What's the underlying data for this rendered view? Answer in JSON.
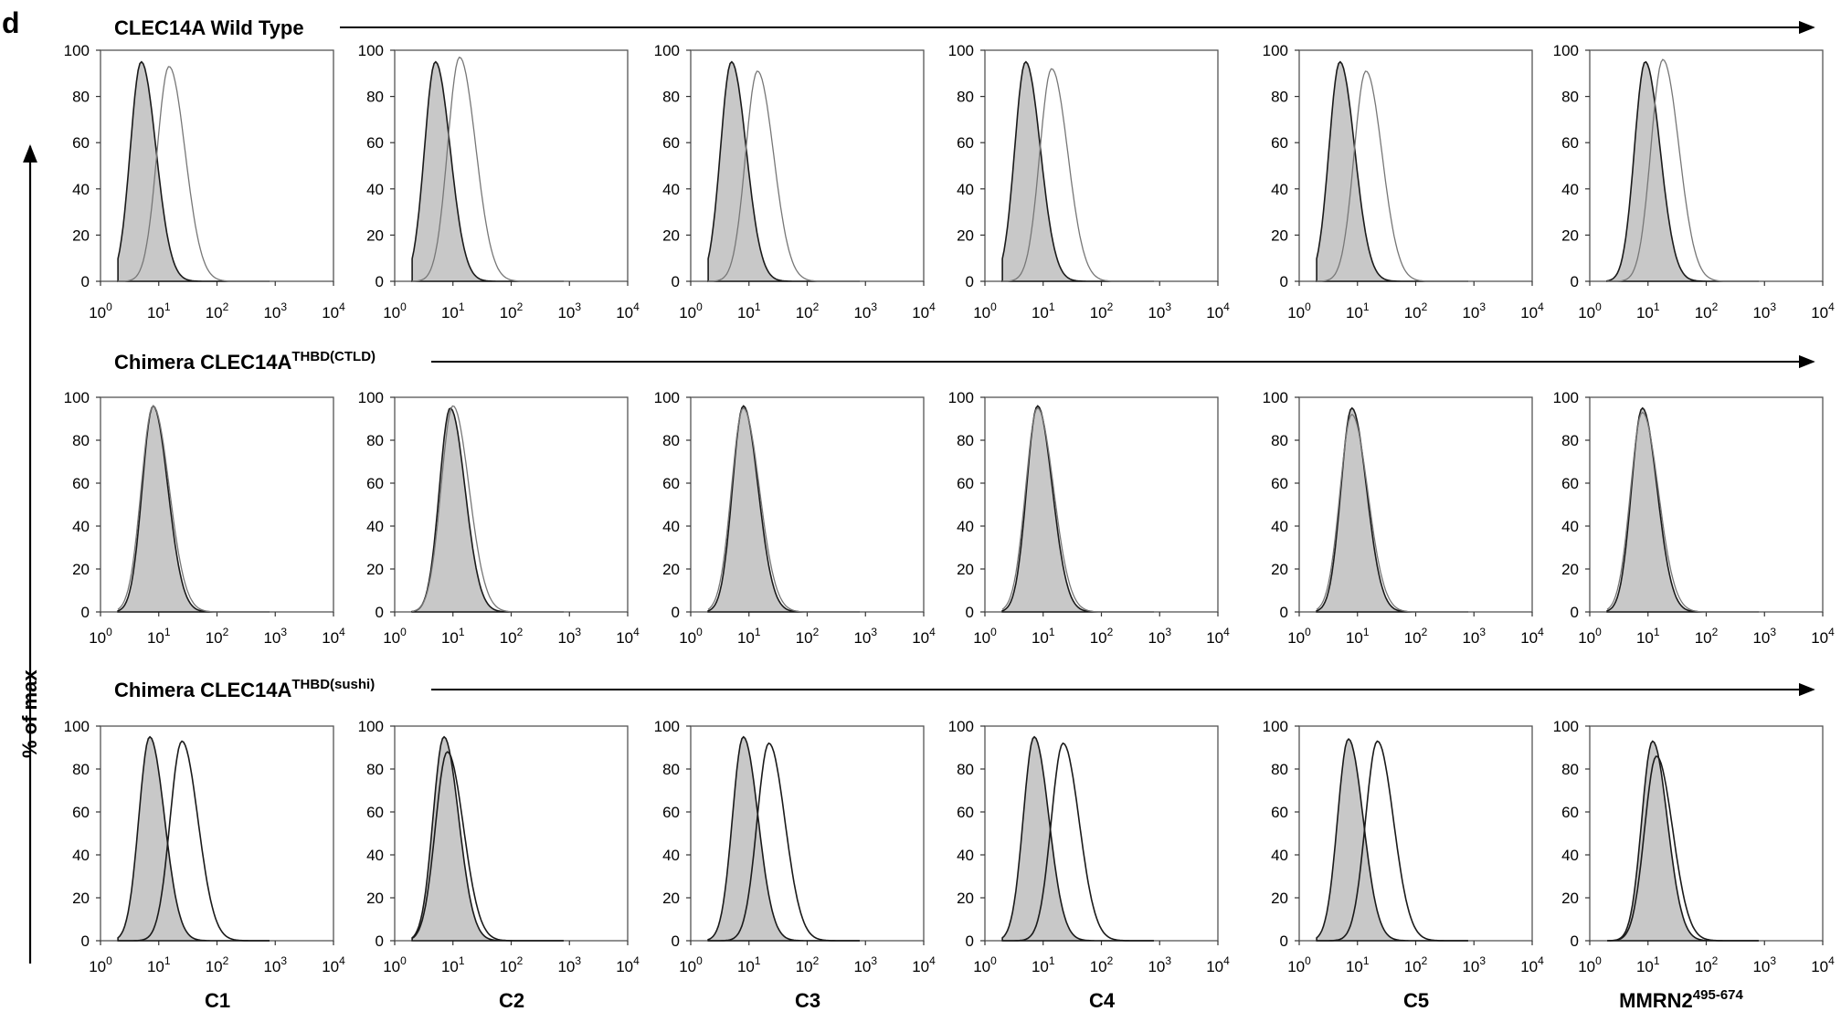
{
  "panel_letter": "d",
  "y_axis_label": "% of max",
  "rows": [
    {
      "label": "CLEC14A Wild Type",
      "label_sup": ""
    },
    {
      "label": "Chimera CLEC14A",
      "label_sup": "THBD(CTLD)"
    },
    {
      "label": "Chimera CLEC14A",
      "label_sup": "THBD(sushi)"
    }
  ],
  "columns": [
    {
      "label": "C1",
      "label_sup": ""
    },
    {
      "label": "C2",
      "label_sup": ""
    },
    {
      "label": "C3",
      "label_sup": ""
    },
    {
      "label": "C4",
      "label_sup": ""
    },
    {
      "label": "C5",
      "label_sup": ""
    },
    {
      "label": "MMRN2",
      "label_sup": "495-674"
    }
  ],
  "colors": {
    "control_fill": "#c8c8c8",
    "control_line": "#1a1a1a",
    "sample_line_light": "#777777",
    "sample_line_dark": "#1a1a1a",
    "frame": "#555555"
  },
  "chart_data": {
    "type": "area",
    "layout": "3x6 grid of flow cytometry histograms",
    "x_scale": "log10",
    "xlim": [
      1,
      10000
    ],
    "x_ticks": [
      "10^0",
      "10^1",
      "10^2",
      "10^3",
      "10^4"
    ],
    "ylim": [
      0,
      100
    ],
    "y_ticks": [
      0,
      20,
      40,
      60,
      80,
      100
    ],
    "ylabel": "% of max",
    "grid": false,
    "series": [
      {
        "name": "",
        "style": "filled grey"
      },
      {
        "name": "",
        "style": "open line"
      }
    ],
    "panels": [
      {
        "row": 0,
        "col": 0,
        "control_peak_x": 5,
        "control_peak_y": 95,
        "sample_peak_x": 15,
        "sample_peak_y": 93
      },
      {
        "row": 0,
        "col": 1,
        "control_peak_x": 5,
        "control_peak_y": 95,
        "sample_peak_x": 13,
        "sample_peak_y": 97
      },
      {
        "row": 0,
        "col": 2,
        "control_peak_x": 5,
        "control_peak_y": 95,
        "sample_peak_x": 14,
        "sample_peak_y": 91
      },
      {
        "row": 0,
        "col": 3,
        "control_peak_x": 5,
        "control_peak_y": 95,
        "sample_peak_x": 14,
        "sample_peak_y": 92
      },
      {
        "row": 0,
        "col": 4,
        "control_peak_x": 5,
        "control_peak_y": 95,
        "sample_peak_x": 14,
        "sample_peak_y": 91
      },
      {
        "row": 0,
        "col": 5,
        "control_peak_x": 9,
        "control_peak_y": 95,
        "sample_peak_x": 18,
        "sample_peak_y": 96
      },
      {
        "row": 1,
        "col": 0,
        "control_peak_x": 8,
        "control_peak_y": 96,
        "sample_peak_x": 8,
        "sample_peak_y": 96
      },
      {
        "row": 1,
        "col": 1,
        "control_peak_x": 9,
        "control_peak_y": 95,
        "sample_peak_x": 10,
        "sample_peak_y": 96
      },
      {
        "row": 1,
        "col": 2,
        "control_peak_x": 8,
        "control_peak_y": 96,
        "sample_peak_x": 8,
        "sample_peak_y": 95
      },
      {
        "row": 1,
        "col": 3,
        "control_peak_x": 8,
        "control_peak_y": 96,
        "sample_peak_x": 8,
        "sample_peak_y": 95
      },
      {
        "row": 1,
        "col": 4,
        "control_peak_x": 8,
        "control_peak_y": 95,
        "sample_peak_x": 8,
        "sample_peak_y": 92
      },
      {
        "row": 1,
        "col": 5,
        "control_peak_x": 8,
        "control_peak_y": 95,
        "sample_peak_x": 8,
        "sample_peak_y": 93
      },
      {
        "row": 2,
        "col": 0,
        "control_peak_x": 7,
        "control_peak_y": 95,
        "sample_peak_x": 25,
        "sample_peak_y": 93
      },
      {
        "row": 2,
        "col": 1,
        "control_peak_x": 7,
        "control_peak_y": 95,
        "sample_peak_x": 8,
        "sample_peak_y": 88
      },
      {
        "row": 2,
        "col": 2,
        "control_peak_x": 8,
        "control_peak_y": 95,
        "sample_peak_x": 22,
        "sample_peak_y": 92
      },
      {
        "row": 2,
        "col": 3,
        "control_peak_x": 7,
        "control_peak_y": 95,
        "sample_peak_x": 22,
        "sample_peak_y": 92
      },
      {
        "row": 2,
        "col": 4,
        "control_peak_x": 7,
        "control_peak_y": 94,
        "sample_peak_x": 22,
        "sample_peak_y": 93
      },
      {
        "row": 2,
        "col": 5,
        "control_peak_x": 12,
        "control_peak_y": 93,
        "sample_peak_x": 14,
        "sample_peak_y": 86
      }
    ]
  }
}
